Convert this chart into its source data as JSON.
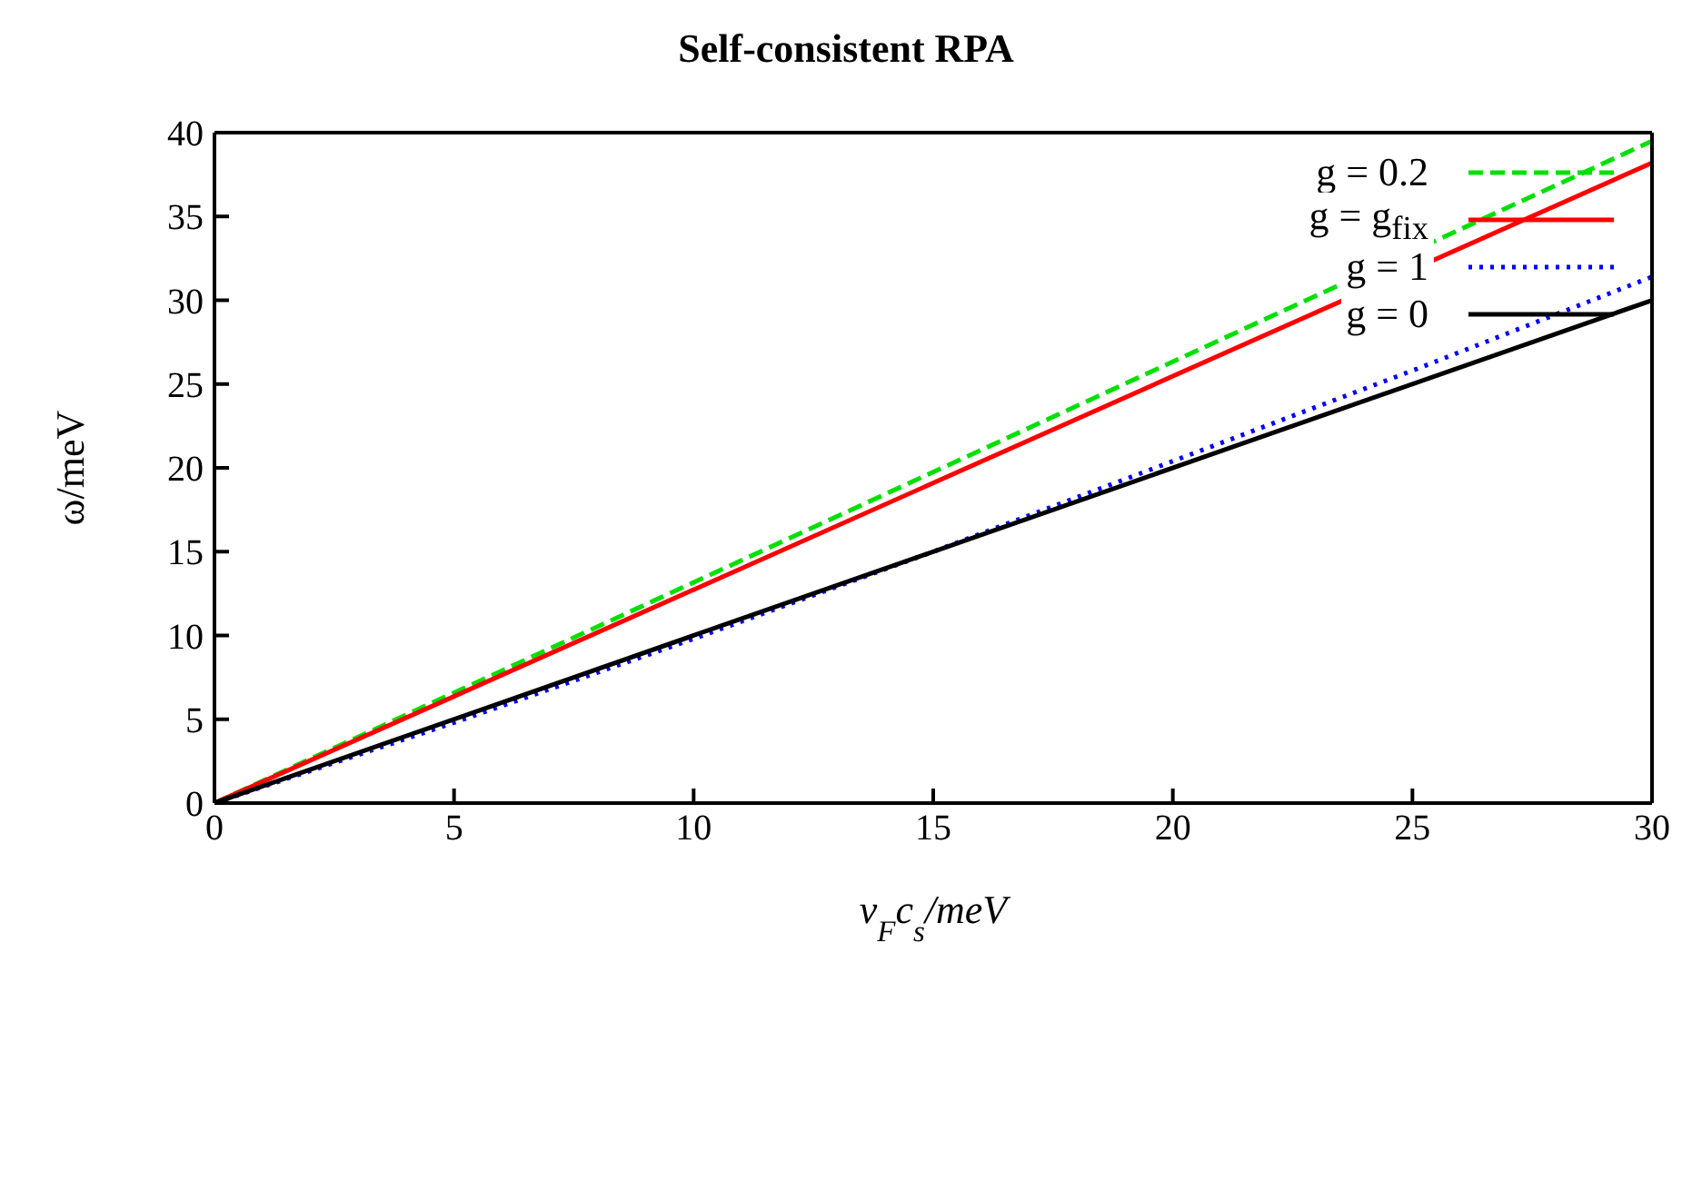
{
  "chart_data": {
    "type": "line",
    "title": "Self-consistent RPA",
    "xlabel": "v$_{F}$c$_{s}$/meV",
    "ylabel": "ω/meV",
    "series": [
      {
        "name": "g = 0.2",
        "color": "#00e000",
        "line_style": "dashed",
        "x": [
          0,
          30
        ],
        "values": [
          0,
          39.5
        ]
      },
      {
        "name": "g = g$_{fix}$",
        "color": "#ff0000",
        "line_style": "solid",
        "x": [
          0,
          30
        ],
        "values": [
          0,
          38.2
        ]
      },
      {
        "name": "g = 1",
        "color": "#0000ff",
        "line_style": "dotted",
        "x": [
          0,
          5,
          10,
          15,
          20,
          25,
          30
        ],
        "values": [
          0,
          4.8,
          9.8,
          15,
          20.4,
          25.8,
          31.4
        ]
      },
      {
        "name": "g = 0",
        "color": "#000000",
        "line_style": "solid",
        "x": [
          0,
          30
        ],
        "values": [
          0,
          30
        ]
      }
    ],
    "xlim": [
      0,
      30
    ],
    "xticks": [
      0,
      5,
      10,
      15,
      20,
      25,
      30
    ],
    "ylim": [
      0,
      40
    ],
    "yticks": [
      0,
      5,
      10,
      15,
      20,
      25,
      30,
      35,
      40
    ],
    "grid": false,
    "legend": "top right",
    "marker": "none"
  }
}
